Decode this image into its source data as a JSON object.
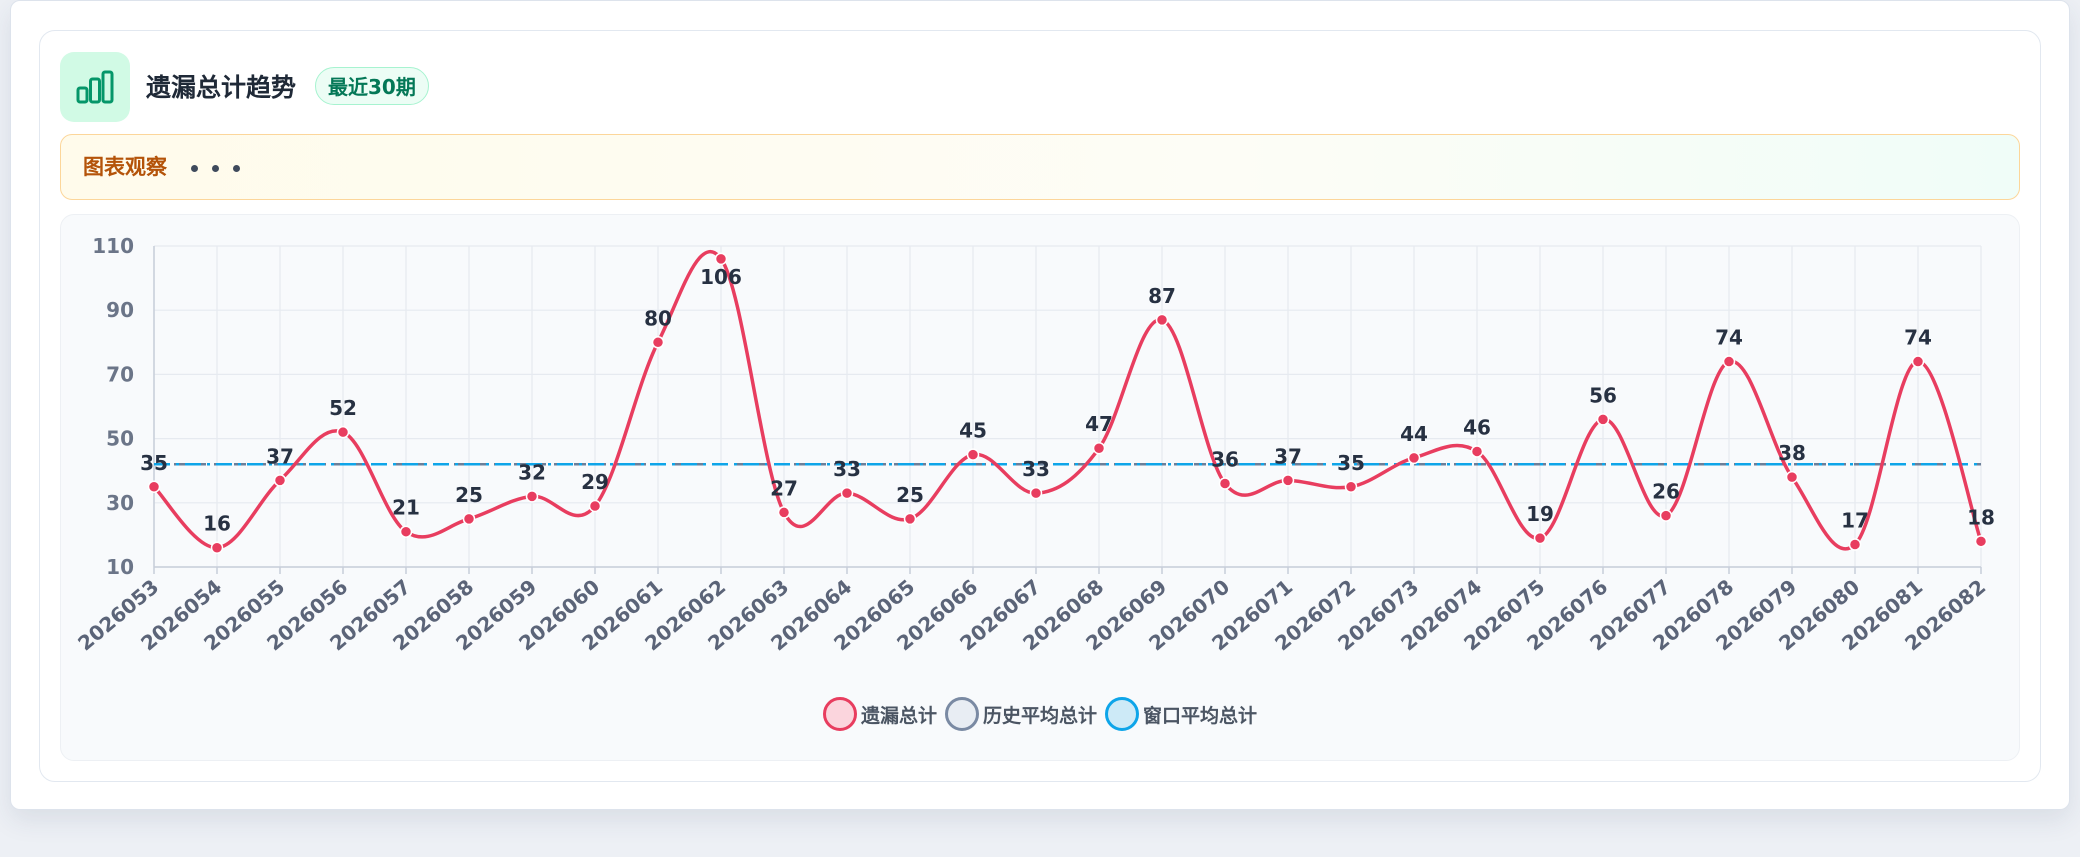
{
  "header": {
    "title": "遗漏总计趋势",
    "badge": "最近30期",
    "icon": "bar-chart-icon"
  },
  "observation": {
    "label": "图表观察",
    "dots": "• • •"
  },
  "colors": {
    "accent": "#10b981",
    "series_main": "#e83d5f",
    "series_history": "#6b7f99",
    "series_window": "#0ea5e9"
  },
  "chart_data": {
    "type": "line",
    "categories": [
      "2026053",
      "2026054",
      "2026055",
      "2026056",
      "2026057",
      "2026058",
      "2026059",
      "2026060",
      "2026061",
      "2026062",
      "2026063",
      "2026064",
      "2026065",
      "2026066",
      "2026067",
      "2026068",
      "2026069",
      "2026070",
      "2026071",
      "2026072",
      "2026073",
      "2026074",
      "2026075",
      "2026076",
      "2026077",
      "2026078",
      "2026079",
      "2026080",
      "2026081",
      "2026082"
    ],
    "series": [
      {
        "name": "遗漏总计",
        "values": [
          35,
          16,
          37,
          52,
          21,
          25,
          32,
          29,
          80,
          106,
          27,
          33,
          25,
          45,
          33,
          47,
          87,
          36,
          37,
          35,
          44,
          46,
          19,
          56,
          26,
          74,
          38,
          17,
          74,
          18
        ],
        "color": "#e83d5f",
        "style": "smooth"
      },
      {
        "name": "历史平均总计",
        "values": [
          42,
          42,
          42,
          42,
          42,
          42,
          42,
          42,
          42,
          42,
          42,
          42,
          42,
          42,
          42,
          42,
          42,
          42,
          42,
          42,
          42,
          42,
          42,
          42,
          42,
          42,
          42,
          42,
          42,
          42
        ],
        "color": "#6b7f99",
        "style": "dashed"
      },
      {
        "name": "窗口平均总计",
        "values": [
          42,
          42,
          42,
          42,
          42,
          42,
          42,
          42,
          42,
          42,
          42,
          42,
          42,
          42,
          42,
          42,
          42,
          42,
          42,
          42,
          42,
          42,
          42,
          42,
          42,
          42,
          42,
          42,
          42,
          42
        ],
        "color": "#0ea5e9",
        "style": "dashdot"
      }
    ],
    "yticks": [
      10,
      30,
      50,
      70,
      90,
      110
    ],
    "ylim": [
      10,
      110
    ],
    "grid": true,
    "legend_position": "bottom-center"
  }
}
